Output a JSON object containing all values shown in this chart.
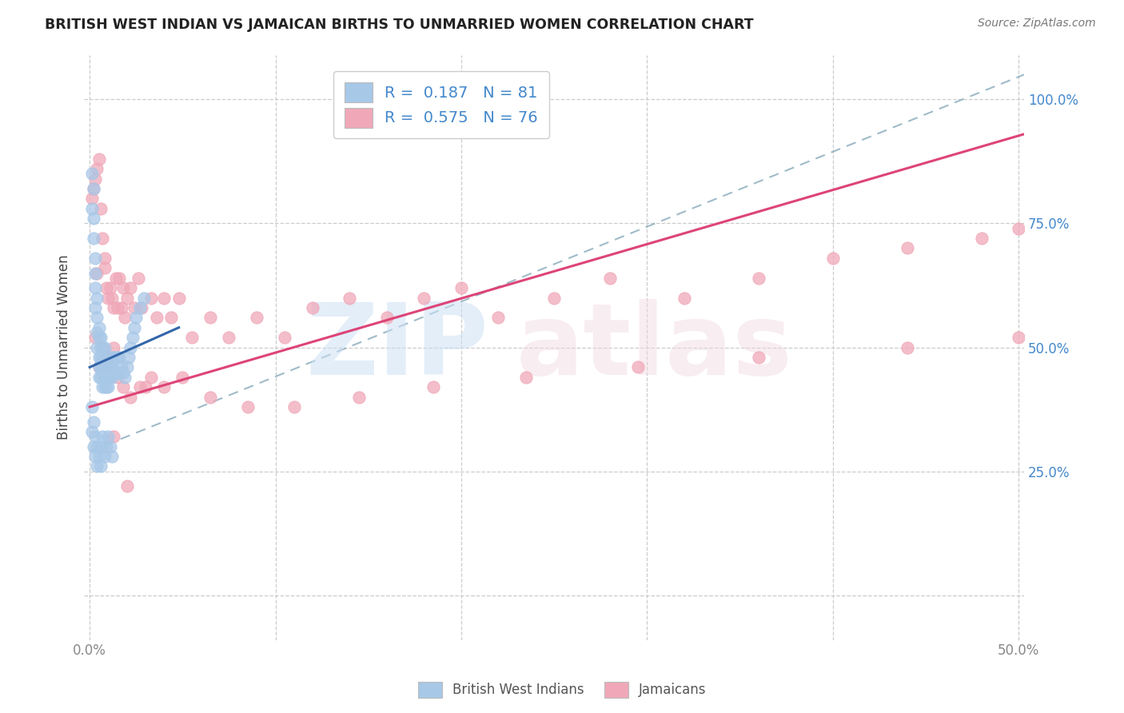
{
  "title": "BRITISH WEST INDIAN VS JAMAICAN BIRTHS TO UNMARRIED WOMEN CORRELATION CHART",
  "source": "Source: ZipAtlas.com",
  "ylabel": "Births to Unmarried Women",
  "x_min": -0.003,
  "x_max": 0.503,
  "y_min": -0.09,
  "y_max": 1.09,
  "legend_label_blue": "British West Indians",
  "legend_label_pink": "Jamaicans",
  "legend_text_1": "R =  0.187   N = 81",
  "legend_text_2": "R =  0.575   N = 76",
  "blue_color": "#a8c8e8",
  "pink_color": "#f0a8b8",
  "blue_line_color": "#3366aa",
  "pink_line_color": "#dd4477",
  "dashed_line_color": "#88aabb",
  "watermark_zip_color": "#ddeeff",
  "watermark_atlas_color": "#eeddee",
  "grid_color": "#cccccc",
  "title_color": "#222222",
  "source_color": "#777777",
  "ytick_color": "#4488cc",
  "xtick_color": "#888888",
  "ylabel_color": "#444444",
  "blue_line_x0": 0.0,
  "blue_line_x1": 0.048,
  "blue_line_y0": 0.46,
  "blue_line_y1": 0.54,
  "pink_line_x0": 0.0,
  "pink_line_x1": 0.503,
  "pink_line_y0": 0.38,
  "pink_line_y1": 0.93,
  "dashed_line_x0": 0.0,
  "dashed_line_x1": 0.503,
  "dashed_line_y0": 0.29,
  "dashed_line_y1": 1.05,
  "blue_dots_x": [
    0.001,
    0.001,
    0.002,
    0.002,
    0.002,
    0.003,
    0.003,
    0.003,
    0.003,
    0.004,
    0.004,
    0.004,
    0.004,
    0.005,
    0.005,
    0.005,
    0.005,
    0.005,
    0.006,
    0.006,
    0.006,
    0.006,
    0.006,
    0.007,
    0.007,
    0.007,
    0.007,
    0.008,
    0.008,
    0.008,
    0.008,
    0.009,
    0.009,
    0.009,
    0.009,
    0.01,
    0.01,
    0.01,
    0.01,
    0.011,
    0.011,
    0.011,
    0.012,
    0.012,
    0.012,
    0.013,
    0.013,
    0.014,
    0.014,
    0.015,
    0.015,
    0.016,
    0.016,
    0.017,
    0.018,
    0.019,
    0.02,
    0.021,
    0.022,
    0.023,
    0.024,
    0.025,
    0.027,
    0.029,
    0.001,
    0.001,
    0.002,
    0.002,
    0.003,
    0.003,
    0.004,
    0.004,
    0.005,
    0.006,
    0.006,
    0.007,
    0.008,
    0.009,
    0.01,
    0.011,
    0.012
  ],
  "blue_dots_y": [
    0.85,
    0.78,
    0.82,
    0.76,
    0.72,
    0.68,
    0.65,
    0.62,
    0.58,
    0.6,
    0.56,
    0.53,
    0.5,
    0.54,
    0.52,
    0.48,
    0.46,
    0.44,
    0.52,
    0.5,
    0.48,
    0.46,
    0.44,
    0.5,
    0.48,
    0.45,
    0.42,
    0.5,
    0.47,
    0.44,
    0.42,
    0.48,
    0.46,
    0.44,
    0.42,
    0.48,
    0.46,
    0.44,
    0.42,
    0.48,
    0.46,
    0.44,
    0.48,
    0.46,
    0.44,
    0.48,
    0.45,
    0.48,
    0.45,
    0.48,
    0.45,
    0.48,
    0.45,
    0.46,
    0.45,
    0.44,
    0.46,
    0.48,
    0.5,
    0.52,
    0.54,
    0.56,
    0.58,
    0.6,
    0.38,
    0.33,
    0.35,
    0.3,
    0.32,
    0.28,
    0.3,
    0.26,
    0.28,
    0.3,
    0.26,
    0.32,
    0.28,
    0.3,
    0.32,
    0.3,
    0.28
  ],
  "pink_dots_x": [
    0.001,
    0.002,
    0.003,
    0.004,
    0.005,
    0.006,
    0.007,
    0.008,
    0.009,
    0.01,
    0.011,
    0.012,
    0.013,
    0.014,
    0.015,
    0.016,
    0.017,
    0.018,
    0.019,
    0.02,
    0.022,
    0.024,
    0.026,
    0.028,
    0.03,
    0.033,
    0.036,
    0.04,
    0.044,
    0.048,
    0.055,
    0.065,
    0.075,
    0.09,
    0.105,
    0.12,
    0.14,
    0.16,
    0.18,
    0.2,
    0.22,
    0.25,
    0.28,
    0.32,
    0.36,
    0.4,
    0.44,
    0.48,
    0.5,
    0.003,
    0.005,
    0.007,
    0.009,
    0.011,
    0.013,
    0.015,
    0.018,
    0.022,
    0.027,
    0.033,
    0.04,
    0.05,
    0.065,
    0.085,
    0.11,
    0.145,
    0.185,
    0.235,
    0.295,
    0.36,
    0.44,
    0.5,
    0.004,
    0.008,
    0.013,
    0.02
  ],
  "pink_dots_y": [
    0.8,
    0.82,
    0.84,
    0.86,
    0.88,
    0.78,
    0.72,
    0.66,
    0.62,
    0.6,
    0.62,
    0.6,
    0.58,
    0.64,
    0.58,
    0.64,
    0.58,
    0.62,
    0.56,
    0.6,
    0.62,
    0.58,
    0.64,
    0.58,
    0.42,
    0.6,
    0.56,
    0.6,
    0.56,
    0.6,
    0.52,
    0.56,
    0.52,
    0.56,
    0.52,
    0.58,
    0.6,
    0.56,
    0.6,
    0.62,
    0.56,
    0.6,
    0.64,
    0.6,
    0.64,
    0.68,
    0.7,
    0.72,
    0.74,
    0.52,
    0.46,
    0.5,
    0.48,
    0.46,
    0.5,
    0.44,
    0.42,
    0.4,
    0.42,
    0.44,
    0.42,
    0.44,
    0.4,
    0.38,
    0.38,
    0.4,
    0.42,
    0.44,
    0.46,
    0.48,
    0.5,
    0.52,
    0.65,
    0.68,
    0.32,
    0.22
  ]
}
